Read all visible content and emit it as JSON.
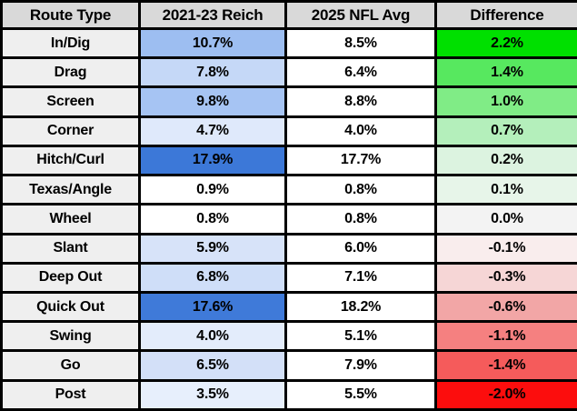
{
  "colors": {
    "header_bg": "#d9d9d9",
    "route_col_bg": "#efefef",
    "nfl_col_bg": "#ffffff",
    "border": "#000000",
    "text": "#000000",
    "blue_scale_max": "#3c78d8",
    "green_scale_max": "#00e000",
    "red_scale_max": "#fc0d0d"
  },
  "table": {
    "headers": [
      "Route Type",
      "2021-23 Reich",
      "2025 NFL Avg",
      "Difference"
    ],
    "rows": [
      {
        "route": "In/Dig",
        "reich": "10.7%",
        "nfl": "8.5%",
        "diff": "2.2%",
        "reich_bg": "#9dbef1",
        "diff_bg": "#00e000"
      },
      {
        "route": "Drag",
        "reich": "7.8%",
        "nfl": "6.4%",
        "diff": "1.4%",
        "reich_bg": "#c5d8f7",
        "diff_bg": "#57e85f"
      },
      {
        "route": "Screen",
        "reich": "9.8%",
        "nfl": "8.8%",
        "diff": "1.0%",
        "reich_bg": "#a6c4f3",
        "diff_bg": "#80ec86"
      },
      {
        "route": "Corner",
        "reich": "4.7%",
        "nfl": "4.0%",
        "diff": "0.7%",
        "reich_bg": "#dfe9fb",
        "diff_bg": "#b4efbb"
      },
      {
        "route": "Hitch/Curl",
        "reich": "17.9%",
        "nfl": "17.7%",
        "diff": "0.2%",
        "reich_bg": "#3c78d8",
        "diff_bg": "#dcf3e0"
      },
      {
        "route": "Texas/Angle",
        "reich": "0.9%",
        "nfl": "0.8%",
        "diff": "0.1%",
        "reich_bg": "#ffffff",
        "diff_bg": "#e7f5e9"
      },
      {
        "route": "Wheel",
        "reich": "0.8%",
        "nfl": "0.8%",
        "diff": "0.0%",
        "reich_bg": "#ffffff",
        "diff_bg": "#f3f3f3"
      },
      {
        "route": "Slant",
        "reich": "5.9%",
        "nfl": "6.0%",
        "diff": "-0.1%",
        "reich_bg": "#d7e3f9",
        "diff_bg": "#f9eded"
      },
      {
        "route": "Deep Out",
        "reich": "6.8%",
        "nfl": "7.1%",
        "diff": "-0.3%",
        "reich_bg": "#cfdef8",
        "diff_bg": "#f6d6d6"
      },
      {
        "route": "Quick Out",
        "reich": "17.6%",
        "nfl": "18.2%",
        "diff": "-0.6%",
        "reich_bg": "#3f7ad9",
        "diff_bg": "#f2a6a6"
      },
      {
        "route": "Swing",
        "reich": "4.0%",
        "nfl": "5.1%",
        "diff": "-1.1%",
        "reich_bg": "#e3ecfb",
        "diff_bg": "#f58080"
      },
      {
        "route": "Go",
        "reich": "6.5%",
        "nfl": "7.9%",
        "diff": "-1.4%",
        "reich_bg": "#d3e0f8",
        "diff_bg": "#f55b5b"
      },
      {
        "route": "Post",
        "reich": "3.5%",
        "nfl": "5.5%",
        "diff": "-2.0%",
        "reich_bg": "#e7effc",
        "diff_bg": "#fc0d0d"
      }
    ]
  },
  "chart_data": {
    "type": "table",
    "columns": [
      "Route Type",
      "2021-23 Reich",
      "2025 NFL Avg",
      "Difference"
    ],
    "units": "%",
    "rows": [
      [
        "In/Dig",
        10.7,
        8.5,
        2.2
      ],
      [
        "Drag",
        7.8,
        6.4,
        1.4
      ],
      [
        "Screen",
        9.8,
        8.8,
        1.0
      ],
      [
        "Corner",
        4.7,
        4.0,
        0.7
      ],
      [
        "Hitch/Curl",
        17.9,
        17.7,
        0.2
      ],
      [
        "Texas/Angle",
        0.9,
        0.8,
        0.1
      ],
      [
        "Wheel",
        0.8,
        0.8,
        0.0
      ],
      [
        "Slant",
        5.9,
        6.0,
        -0.1
      ],
      [
        "Deep Out",
        6.8,
        7.1,
        -0.3
      ],
      [
        "Quick Out",
        17.6,
        18.2,
        -0.6
      ],
      [
        "Swing",
        4.0,
        5.1,
        -1.1
      ],
      [
        "Go",
        6.5,
        7.9,
        -1.4
      ],
      [
        "Post",
        3.5,
        5.5,
        -2.0
      ]
    ],
    "formatting": {
      "reich_column": "blue color scale, darker = higher value",
      "difference_column": "green (positive) to red (negative) color scale"
    }
  }
}
